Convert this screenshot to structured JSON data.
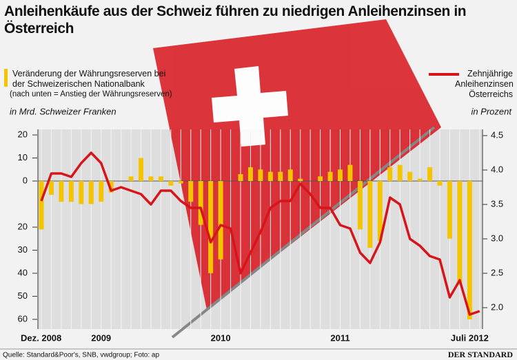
{
  "chart_data": {
    "type": "bar-line",
    "title": "Anleihenkäufe aus der Schweiz führen zu niedrigen Anleihenzinsen in Österreich",
    "annotation": "(nach unten = Anstieg der Währungsreserven)",
    "y_label": "in Mrd. Schweizer Franken",
    "y2_label": "in Prozent",
    "source": "Quelle: Standard&Poor's, SNB, vwdgroup; Foto: ap",
    "publisher": "DER STANDARD",
    "categories": [
      "Dez. 2008",
      null,
      null,
      null,
      null,
      null,
      "2009",
      null,
      null,
      null,
      null,
      null,
      null,
      null,
      null,
      null,
      null,
      null,
      "2010",
      null,
      null,
      null,
      null,
      null,
      null,
      null,
      null,
      null,
      null,
      null,
      "2011",
      null,
      null,
      null,
      null,
      null,
      null,
      null,
      null,
      null,
      null,
      null,
      null,
      "Juli 2012",
      null
    ],
    "series": [
      {
        "name": "Veränderung der Währungsreserven bei der Schweizerischen Nationalbank",
        "color": "#f5c400",
        "type": "bar",
        "values": [
          21,
          6,
          9,
          9,
          10,
          10,
          9,
          5,
          0,
          -2,
          -10,
          -2,
          -2,
          2,
          1,
          9,
          19,
          40,
          34,
          0,
          -3,
          -6,
          -5,
          -4,
          -4,
          -5,
          -1,
          0,
          -2,
          -4,
          -5,
          -7,
          21,
          29,
          26,
          -6,
          -7,
          -4,
          -1,
          -6,
          2,
          25,
          45,
          60,
          null
        ]
      },
      {
        "name": "Zehnjährige Anleihenzinsen Österreichs",
        "color": "#d7141a",
        "type": "line",
        "axis": "y2",
        "values": [
          3.55,
          3.95,
          3.95,
          3.9,
          4.1,
          4.25,
          4.1,
          3.7,
          3.75,
          3.7,
          3.65,
          3.5,
          3.7,
          3.7,
          3.55,
          3.45,
          3.45,
          2.95,
          3.2,
          3.15,
          2.5,
          2.8,
          3.1,
          3.45,
          3.55,
          3.55,
          3.8,
          3.65,
          3.45,
          3.45,
          3.2,
          3.15,
          2.8,
          2.65,
          2.95,
          3.6,
          3.5,
          3.0,
          2.9,
          2.75,
          2.7,
          2.15,
          2.4,
          1.9,
          1.95
        ]
      }
    ],
    "ylim": [
      -22.4,
      64.2
    ],
    "yticks": [
      {
        "value": -20,
        "label": "20"
      },
      {
        "value": -10,
        "label": "10"
      },
      0,
      20,
      30,
      40,
      50,
      60
    ],
    "y2lim": [
      1.69,
      4.59
    ],
    "y2ticks": [
      4.5,
      {
        "value": 4.0,
        "label": "4.0"
      },
      3.5,
      {
        "value": 3.0,
        "label": "3.0"
      },
      2.5,
      {
        "value": 2.0,
        "label": "2.0"
      }
    ],
    "grid": true
  }
}
